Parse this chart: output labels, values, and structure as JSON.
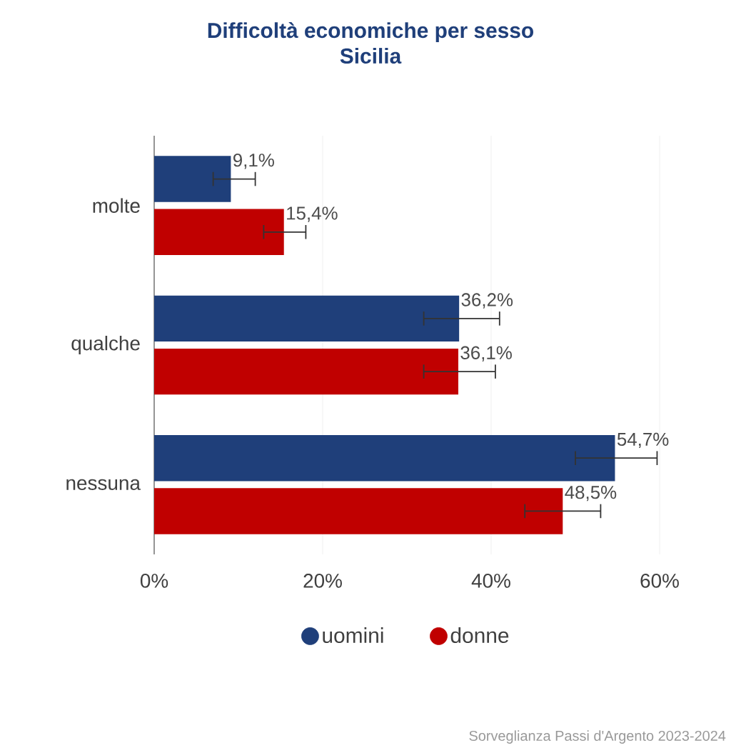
{
  "chart_data": {
    "type": "bar",
    "orientation": "horizontal",
    "title": "Difficoltà economiche per sesso",
    "subtitle": "Sicilia",
    "categories": [
      "molte",
      "qualche",
      "nessuna"
    ],
    "series": [
      {
        "name": "uomini",
        "color": "#1f3f7a",
        "values": [
          9.1,
          36.2,
          54.7
        ],
        "errors": [
          [
            7,
            12
          ],
          [
            32,
            41
          ],
          [
            50,
            59.7
          ]
        ],
        "value_labels": [
          "9,1%",
          "36,2%",
          "54,7%"
        ]
      },
      {
        "name": "donne",
        "color": "#c00000",
        "values": [
          15.4,
          36.1,
          48.5
        ],
        "errors": [
          [
            13,
            18
          ],
          [
            32,
            40.5
          ],
          [
            44,
            53
          ]
        ],
        "value_labels": [
          "15,4%",
          "36,1%",
          "48,5%"
        ]
      }
    ],
    "xlim": [
      0,
      60
    ],
    "xticks": [
      {
        "value": 0,
        "label": "0%"
      },
      {
        "value": 20,
        "label": "20%"
      },
      {
        "value": 40,
        "label": "40%"
      },
      {
        "value": 60,
        "label": "60%"
      }
    ],
    "grid": "x",
    "legend": "bottom",
    "annotations": [
      "Sorveglianza Passi d'Argento 2023-2024"
    ]
  }
}
